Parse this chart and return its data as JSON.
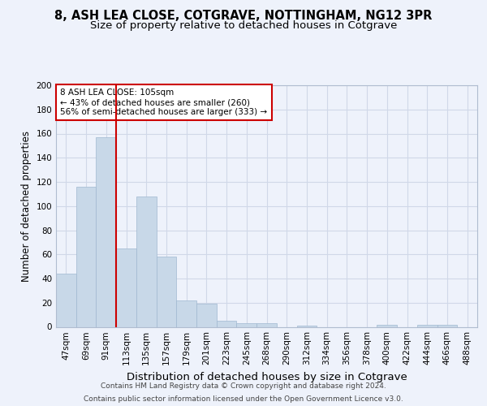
{
  "title1": "8, ASH LEA CLOSE, COTGRAVE, NOTTINGHAM, NG12 3PR",
  "title2": "Size of property relative to detached houses in Cotgrave",
  "xlabel": "Distribution of detached houses by size in Cotgrave",
  "ylabel": "Number of detached properties",
  "categories": [
    "47sqm",
    "69sqm",
    "91sqm",
    "113sqm",
    "135sqm",
    "157sqm",
    "179sqm",
    "201sqm",
    "223sqm",
    "245sqm",
    "268sqm",
    "290sqm",
    "312sqm",
    "334sqm",
    "356sqm",
    "378sqm",
    "400sqm",
    "422sqm",
    "444sqm",
    "466sqm",
    "488sqm"
  ],
  "values": [
    44,
    116,
    157,
    65,
    108,
    58,
    22,
    19,
    5,
    3,
    3,
    0,
    1,
    0,
    0,
    0,
    2,
    0,
    2,
    2,
    0
  ],
  "bar_color": "#c8d8e8",
  "bar_edge_color": "#a0b8d0",
  "highlight_bar_index": 2,
  "highlight_line_color": "#cc0000",
  "annotation_box_line1": "8 ASH LEA CLOSE: 105sqm",
  "annotation_box_line2": "← 43% of detached houses are smaller (260)",
  "annotation_box_line3": "56% of semi-detached houses are larger (333) →",
  "annotation_box_edge_color": "#cc0000",
  "annotation_box_bg_color": "#ffffff",
  "ylim": [
    0,
    200
  ],
  "yticks": [
    0,
    20,
    40,
    60,
    80,
    100,
    120,
    140,
    160,
    180,
    200
  ],
  "grid_color": "#d0d8e8",
  "bg_color": "#eef2fb",
  "footer1": "Contains HM Land Registry data © Crown copyright and database right 2024.",
  "footer2": "Contains public sector information licensed under the Open Government Licence v3.0.",
  "title1_fontsize": 10.5,
  "title2_fontsize": 9.5,
  "xlabel_fontsize": 9.5,
  "ylabel_fontsize": 8.5,
  "tick_fontsize": 7.5,
  "footer_fontsize": 6.5
}
